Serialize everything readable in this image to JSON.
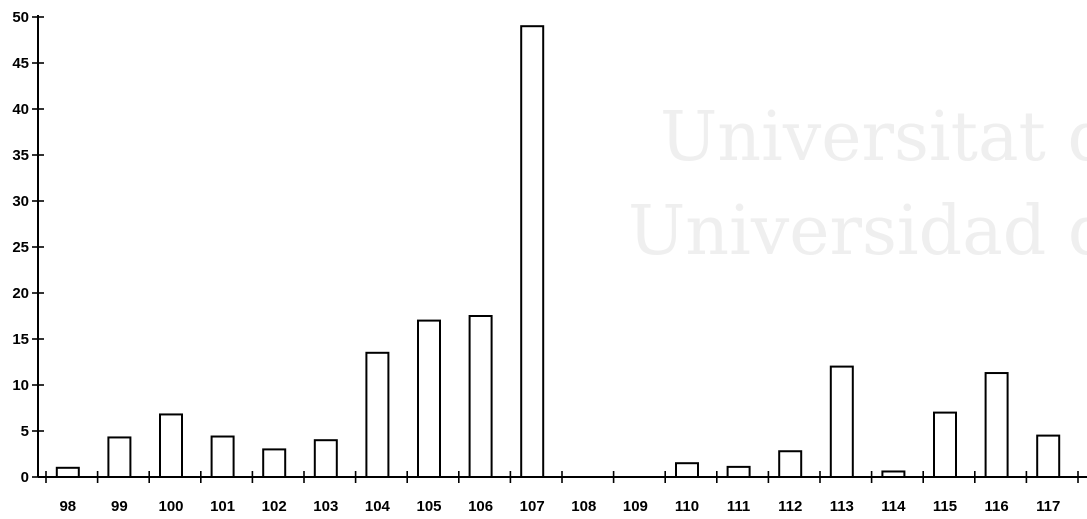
{
  "watermark": {
    "line1": "Universitat d'A",
    "line2": "Universidad de A"
  },
  "chart_data": {
    "type": "bar",
    "title": "",
    "xlabel": "",
    "ylabel": "",
    "categories": [
      "98",
      "99",
      "100",
      "101",
      "102",
      "103",
      "104",
      "105",
      "106",
      "107",
      "108",
      "109",
      "110",
      "111",
      "112",
      "113",
      "114",
      "115",
      "116",
      "117"
    ],
    "values": [
      1,
      4.3,
      6.8,
      4.4,
      3,
      4,
      13.5,
      17,
      17.5,
      49,
      0,
      0,
      1.5,
      1.1,
      2.8,
      12,
      0.6,
      7,
      11.3,
      4.5
    ],
    "ylim": [
      0,
      50
    ],
    "yticks": [
      0,
      5,
      10,
      15,
      20,
      25,
      30,
      35,
      40,
      45,
      50
    ],
    "grid": false,
    "legend": "none"
  }
}
